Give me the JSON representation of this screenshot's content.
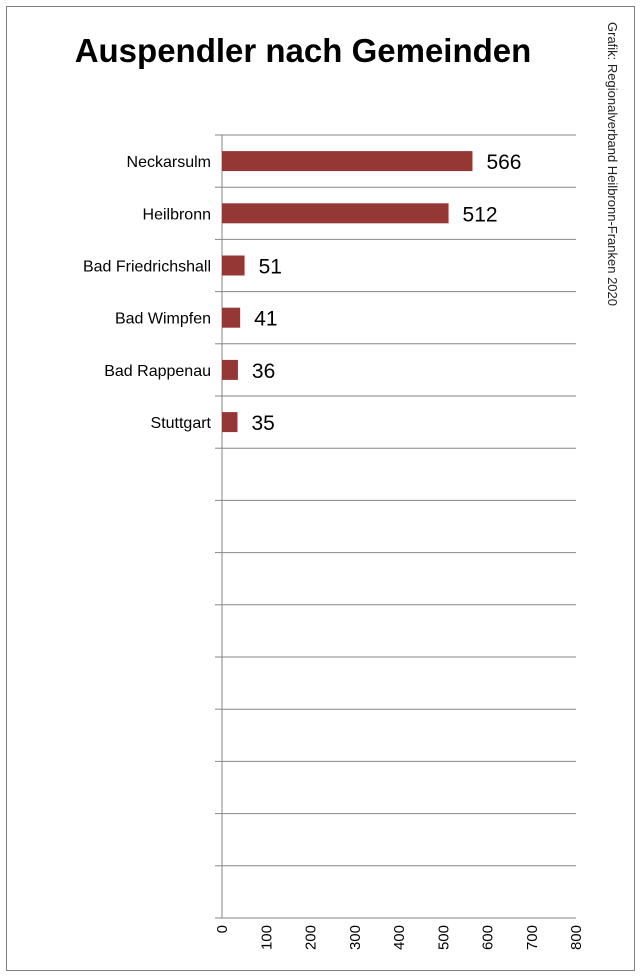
{
  "chart_data": {
    "type": "bar",
    "orientation": "horizontal",
    "title": "Auspendler nach Gemeinden",
    "source": "Grafik: Regionalverband Heilbronn-Franken 2020",
    "categories": [
      "Neckarsulm",
      "Heilbronn",
      "Bad Friedrichshall",
      "Bad Wimpfen",
      "Bad Rappenau",
      "Stuttgart"
    ],
    "values": [
      566,
      512,
      51,
      41,
      36,
      35
    ],
    "xlim": [
      0,
      800
    ],
    "ticks": [
      "0",
      "100",
      "200",
      "300",
      "400",
      "500",
      "600",
      "700",
      "800"
    ],
    "grid": true,
    "bar_color": "#953735"
  }
}
